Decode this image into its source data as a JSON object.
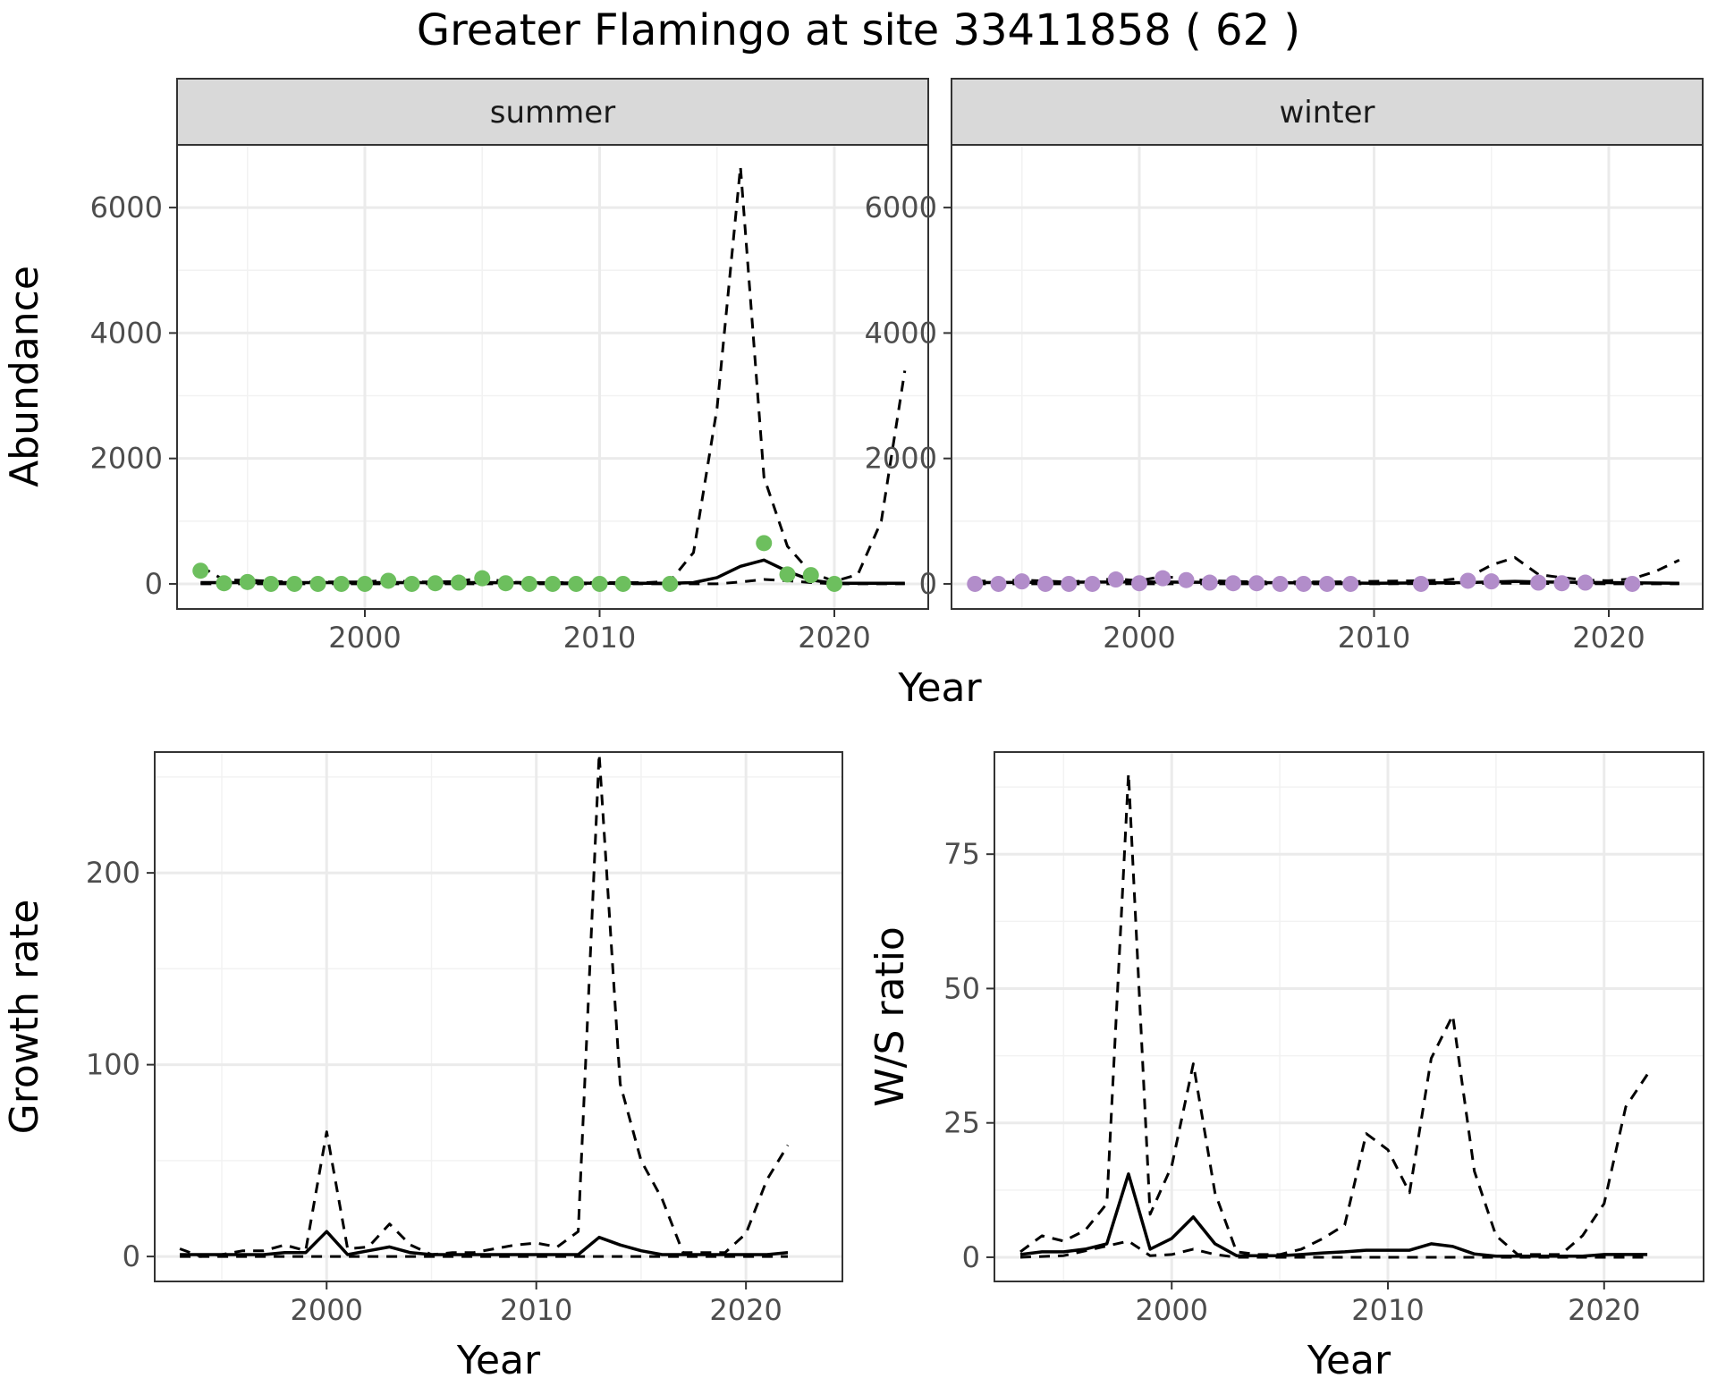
{
  "title": "Greater Flamingo at site 33411858 ( 62 )",
  "colors": {
    "summer_points": "#6dbf5e",
    "winter_points": "#b28dca",
    "lines": "#000000",
    "strip_bg": "#d9d9d9"
  },
  "chart_data": [
    {
      "type": "line",
      "facet": "summer",
      "xlabel": "Year",
      "ylabel": "Abundance",
      "xlim": [
        1992,
        2024
      ],
      "ylim": [
        -400,
        7000
      ],
      "xticks": [
        2000,
        2010,
        2020
      ],
      "yticks": [
        0,
        2000,
        4000,
        6000
      ],
      "points": {
        "x": [
          1993,
          1994,
          1995,
          1996,
          1997,
          1998,
          1999,
          2000,
          2001,
          2002,
          2003,
          2004,
          2005,
          2006,
          2007,
          2008,
          2009,
          2010,
          2011,
          2013,
          2017,
          2018,
          2019,
          2020
        ],
        "y": [
          210,
          10,
          30,
          0,
          0,
          0,
          0,
          0,
          50,
          0,
          10,
          20,
          90,
          10,
          0,
          0,
          0,
          0,
          0,
          0,
          650,
          150,
          140,
          0
        ]
      },
      "series": [
        {
          "role": "estimate",
          "x": [
            1993,
            1995,
            2000,
            2005,
            2010,
            2013,
            2014,
            2015,
            2016,
            2017,
            2018,
            2019,
            2020,
            2021,
            2022,
            2023
          ],
          "y": [
            20,
            20,
            20,
            20,
            10,
            10,
            20,
            100,
            280,
            380,
            200,
            60,
            10,
            10,
            10,
            10
          ]
        },
        {
          "role": "upper",
          "x": [
            1993,
            1994,
            1995,
            1996,
            1997,
            1998,
            1999,
            2000,
            2001,
            2002,
            2003,
            2004,
            2005,
            2006,
            2007,
            2008,
            2009,
            2010,
            2011,
            2012,
            2013,
            2014,
            2015,
            2016,
            2017,
            2018,
            2019,
            2020,
            2021,
            2022,
            2023
          ],
          "y": [
            280,
            60,
            60,
            40,
            30,
            30,
            30,
            30,
            60,
            30,
            30,
            40,
            100,
            30,
            20,
            20,
            20,
            20,
            20,
            20,
            40,
            500,
            2800,
            6650,
            1700,
            600,
            180,
            40,
            150,
            1000,
            3400
          ]
        },
        {
          "role": "lower",
          "x": [
            1993,
            2000,
            2005,
            2010,
            2015,
            2016,
            2017,
            2018,
            2019,
            2020,
            2023
          ],
          "y": [
            0,
            0,
            0,
            0,
            0,
            30,
            70,
            50,
            20,
            0,
            0
          ]
        }
      ]
    },
    {
      "type": "line",
      "facet": "winter",
      "xlabel": "Year",
      "ylabel": "Abundance",
      "xlim": [
        1992,
        2024
      ],
      "ylim": [
        -400,
        7000
      ],
      "xticks": [
        2000,
        2010,
        2020
      ],
      "yticks": [
        0,
        2000,
        4000,
        6000
      ],
      "points": {
        "x": [
          1993,
          1994,
          1995,
          1996,
          1997,
          1998,
          1999,
          2000,
          2001,
          2002,
          2003,
          2004,
          2005,
          2006,
          2007,
          2008,
          2009,
          2012,
          2014,
          2015,
          2017,
          2018,
          2019,
          2021
        ],
        "y": [
          0,
          0,
          40,
          0,
          0,
          0,
          70,
          10,
          90,
          60,
          20,
          10,
          10,
          0,
          0,
          0,
          0,
          0,
          50,
          40,
          20,
          10,
          20,
          0
        ]
      },
      "series": [
        {
          "role": "estimate",
          "x": [
            1993,
            2000,
            2005,
            2010,
            2014,
            2015,
            2016,
            2017,
            2020,
            2023
          ],
          "y": [
            20,
            30,
            20,
            10,
            20,
            30,
            40,
            30,
            20,
            10
          ]
        },
        {
          "role": "upper",
          "x": [
            1993,
            1995,
            1997,
            1999,
            2000,
            2001,
            2002,
            2003,
            2005,
            2008,
            2010,
            2012,
            2013,
            2014,
            2015,
            2016,
            2017,
            2018,
            2019,
            2020,
            2021,
            2022,
            2023
          ],
          "y": [
            40,
            60,
            30,
            80,
            50,
            120,
            80,
            50,
            30,
            30,
            40,
            50,
            60,
            100,
            300,
            420,
            150,
            100,
            60,
            50,
            80,
            200,
            380
          ]
        },
        {
          "role": "lower",
          "x": [
            1993,
            2000,
            2010,
            2016,
            2020,
            2023
          ],
          "y": [
            0,
            0,
            0,
            10,
            0,
            0
          ]
        }
      ]
    },
    {
      "type": "line",
      "xlabel": "Year",
      "ylabel": "Growth rate",
      "xlim": [
        1991.8,
        2024.6
      ],
      "ylim": [
        -13,
        263
      ],
      "xticks": [
        2000,
        2010,
        2020
      ],
      "yticks": [
        0,
        100,
        200
      ],
      "series": [
        {
          "role": "estimate",
          "x": [
            1993,
            1994,
            1995,
            1996,
            1997,
            1998,
            1999,
            2000,
            2001,
            2002,
            2003,
            2004,
            2005,
            2006,
            2007,
            2008,
            2009,
            2010,
            2011,
            2012,
            2013,
            2014,
            2015,
            2016,
            2017,
            2018,
            2019,
            2020,
            2021,
            2022
          ],
          "y": [
            1,
            1,
            1,
            1,
            1,
            2,
            2,
            13,
            1,
            3,
            5,
            2,
            1,
            1,
            1,
            1,
            1,
            1,
            1,
            1,
            10,
            6,
            3,
            1,
            1,
            1,
            1,
            1,
            1,
            2
          ]
        },
        {
          "role": "upper",
          "x": [
            1993,
            1994,
            1995,
            1996,
            1997,
            1998,
            1999,
            2000,
            2001,
            2002,
            2003,
            2004,
            2005,
            2006,
            2007,
            2008,
            2009,
            2010,
            2011,
            2012,
            2013,
            2014,
            2015,
            2016,
            2017,
            2018,
            2019,
            2020,
            2021,
            2022
          ],
          "y": [
            4,
            0,
            1,
            3,
            3,
            6,
            3,
            65,
            4,
            5,
            17,
            6,
            1,
            2,
            2,
            4,
            6,
            7,
            5,
            13,
            262,
            90,
            50,
            30,
            2,
            2,
            2,
            12,
            40,
            58
          ]
        },
        {
          "role": "lower",
          "x": [
            1993,
            2000,
            2010,
            2020,
            2022
          ],
          "y": [
            0,
            0,
            0,
            0,
            0
          ]
        }
      ]
    },
    {
      "type": "line",
      "xlabel": "Year",
      "ylabel": "W/S ratio",
      "xlim": [
        1991.8,
        2024.6
      ],
      "ylim": [
        -4.5,
        94
      ],
      "xticks": [
        2000,
        2010,
        2020
      ],
      "yticks": [
        0,
        25,
        50,
        75
      ],
      "series": [
        {
          "role": "estimate",
          "x": [
            1993,
            1994,
            1995,
            1996,
            1997,
            1998,
            1999,
            2000,
            2001,
            2002,
            2003,
            2004,
            2005,
            2006,
            2007,
            2008,
            2009,
            2010,
            2011,
            2012,
            2013,
            2014,
            2015,
            2016,
            2017,
            2018,
            2019,
            2020,
            2021,
            2022
          ],
          "y": [
            0.5,
            1,
            1,
            1.5,
            2.5,
            15.5,
            1.5,
            3.5,
            7.5,
            2.5,
            0.3,
            0.3,
            0.3,
            0.5,
            0.8,
            1,
            1.3,
            1.3,
            1.3,
            2.5,
            2,
            0.6,
            0.2,
            0.2,
            0.2,
            0.2,
            0.2,
            0.5,
            0.5,
            0.5
          ]
        },
        {
          "role": "upper",
          "x": [
            1993,
            1994,
            1995,
            1996,
            1997,
            1998,
            1999,
            2000,
            2001,
            2002,
            2003,
            2004,
            2005,
            2006,
            2007,
            2008,
            2009,
            2010,
            2011,
            2012,
            2013,
            2014,
            2015,
            2016,
            2017,
            2018,
            2019,
            2020,
            2021,
            2022
          ],
          "y": [
            1,
            4,
            3,
            5,
            10,
            90,
            8,
            17,
            36,
            12,
            1,
            0.5,
            0.5,
            1.5,
            3.5,
            6,
            23,
            20,
            12,
            37,
            45,
            16,
            4,
            0.5,
            0.5,
            0.5,
            4,
            10,
            28,
            34
          ]
        },
        {
          "role": "lower",
          "x": [
            1993,
            1995,
            1998,
            1999,
            2000,
            2001,
            2002,
            2003,
            2010,
            2022
          ],
          "y": [
            0,
            0.3,
            3,
            0.3,
            0.5,
            1.5,
            0.5,
            0,
            0,
            0
          ]
        }
      ]
    }
  ]
}
